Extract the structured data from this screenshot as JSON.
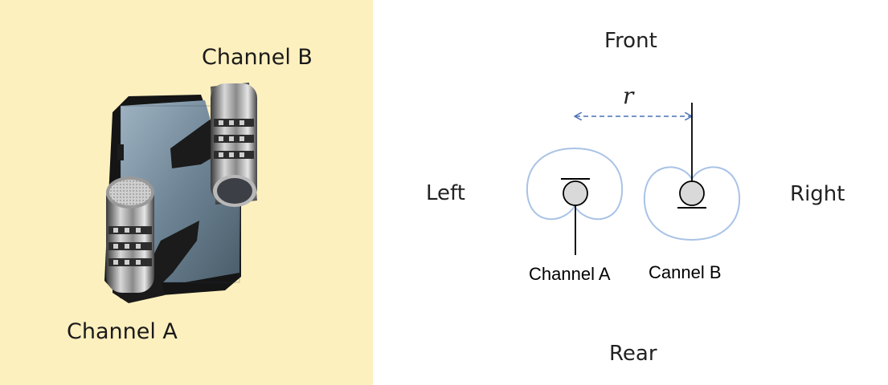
{
  "photo": {
    "label_channel_a": "Channel A",
    "label_channel_b": "Channel B"
  },
  "diagram": {
    "front": "Front",
    "rear": "Rear",
    "left": "Left",
    "right": "Right",
    "distance_symbol": "r",
    "mic_a_label": "Channel A",
    "mic_b_label": "Cannel B"
  },
  "colors": {
    "photo_background": "#fdf0bf",
    "polar_pattern": "#a9c3e6",
    "distance_arrow": "#4a72b5",
    "capsule_fill": "#d9d9d9"
  }
}
